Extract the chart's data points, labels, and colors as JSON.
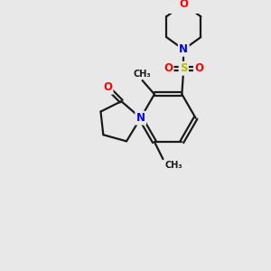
{
  "bg_color": "#e8e8e8",
  "bond_color": "#1a1a1a",
  "line_width": 1.6,
  "atom_colors": {
    "O": "#ff0000",
    "N": "#0000ff",
    "S": "#b8b800",
    "C": "#1a1a1a"
  },
  "font_size_atoms": 8.5,
  "font_size_methyl": 7.0
}
